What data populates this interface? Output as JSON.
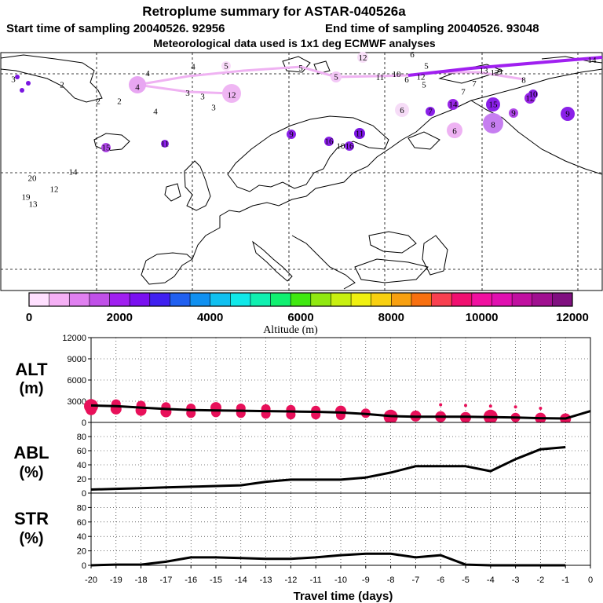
{
  "header": {
    "title": "Retroplume summary for ASTAR-040526a",
    "line2_start": "Start time of sampling 20040526. 92956",
    "line2_end": "End time of sampling 20040526. 93048",
    "line3": "Meteorological data used is 1x1 deg ECMWF analyses"
  },
  "colorbar": {
    "label": "Altitude (m)",
    "ticks": [
      "0",
      "2000",
      "4000",
      "6000",
      "8000",
      "10000",
      "12000"
    ],
    "colors": [
      "#ffe0ff",
      "#f5b0f5",
      "#e080f0",
      "#c050e8",
      "#a020f0",
      "#7a10f0",
      "#4020f0",
      "#2060f0",
      "#1090f0",
      "#10c0f0",
      "#10e8e8",
      "#10f0b0",
      "#10f070",
      "#40e810",
      "#90e810",
      "#c8f010",
      "#f0f010",
      "#f8d010",
      "#f8a010",
      "#f87010",
      "#f84050",
      "#f01070",
      "#f010a0",
      "#e010b0",
      "#c010a0",
      "#a01090",
      "#801080"
    ]
  },
  "map": {
    "plume_labels": [
      {
        "t": "4",
        "big": true
      },
      {
        "t": "4"
      },
      {
        "t": "4"
      },
      {
        "t": "5"
      },
      {
        "t": "5"
      },
      {
        "t": "5"
      },
      {
        "t": "12"
      },
      {
        "t": "6"
      },
      {
        "t": "5"
      },
      {
        "t": "11"
      },
      {
        "t": "10"
      },
      {
        "t": "6"
      },
      {
        "t": "12"
      },
      {
        "t": "13"
      },
      {
        "t": "5"
      },
      {
        "t": "12"
      },
      {
        "t": "9"
      },
      {
        "t": "7"
      },
      {
        "t": "7"
      },
      {
        "t": "8"
      },
      {
        "t": "14"
      },
      {
        "t": "3"
      },
      {
        "t": "3"
      },
      {
        "t": "12"
      },
      {
        "t": "3"
      },
      {
        "t": "3"
      },
      {
        "t": "2"
      },
      {
        "t": "2"
      },
      {
        "t": "2"
      },
      {
        "t": "4"
      },
      {
        "t": "15"
      },
      {
        "t": "11"
      },
      {
        "t": "6"
      },
      {
        "t": "6"
      },
      {
        "t": "14"
      },
      {
        "t": "15"
      },
      {
        "t": "12"
      },
      {
        "t": "11"
      },
      {
        "t": "9"
      },
      {
        "t": "7"
      },
      {
        "t": "8",
        "big": true
      },
      {
        "t": "16"
      },
      {
        "t": "16"
      },
      {
        "t": "10"
      },
      {
        "t": "9"
      },
      {
        "t": "9"
      },
      {
        "t": "10"
      },
      {
        "t": "14"
      },
      {
        "t": "20"
      },
      {
        "t": "12"
      },
      {
        "t": "19"
      },
      {
        "t": "13"
      }
    ]
  },
  "panels": {
    "alt_label": [
      "ALT",
      "(m)"
    ],
    "abl_label": [
      "ABL",
      "(%)"
    ],
    "str_label": [
      "STR",
      "(%)"
    ],
    "xlabel": "Travel time (days)"
  },
  "chart_data": [
    {
      "type": "line",
      "name": "ALT",
      "ylabel": "ALT (m)",
      "ylim": [
        0,
        12000
      ],
      "yticks": [
        0,
        3000,
        6000,
        9000,
        12000
      ],
      "x": [
        -20,
        -19,
        -18,
        -17,
        -16,
        -15,
        -14,
        -13,
        -12,
        -11,
        -10,
        -9,
        -8,
        -7,
        -6,
        -5,
        -4,
        -3,
        -2,
        -1,
        0
      ],
      "xticks": [
        -20,
        -19,
        -18,
        -17,
        -16,
        -15,
        -14,
        -13,
        -12,
        -11,
        -10,
        -9,
        -8,
        -7,
        -6,
        -5,
        -4,
        -3,
        -2,
        -1,
        0
      ],
      "xtick_labels": [
        "-20",
        "-19",
        "-18",
        "-17",
        "-16",
        "-15",
        "-14",
        "-13",
        "-12",
        "-11",
        "-10",
        "-9",
        "-8",
        "-7",
        "-6",
        "-5",
        "-4",
        "-3",
        "-2",
        "-1",
        "0"
      ],
      "values": [
        2400,
        2300,
        2100,
        1900,
        1750,
        1700,
        1650,
        1600,
        1550,
        1500,
        1400,
        1200,
        900,
        800,
        800,
        800,
        750,
        700,
        600,
        550,
        1600
      ],
      "clusters": [
        {
          "x": -20,
          "y": 2300,
          "s": 9
        },
        {
          "x": -20,
          "y": 1800,
          "s": 7
        },
        {
          "x": -19,
          "y": 2600,
          "s": 6
        },
        {
          "x": -19,
          "y": 1900,
          "s": 7
        },
        {
          "x": -18,
          "y": 2400,
          "s": 6
        },
        {
          "x": -18,
          "y": 1700,
          "s": 7
        },
        {
          "x": -17,
          "y": 2200,
          "s": 6
        },
        {
          "x": -17,
          "y": 1500,
          "s": 7
        },
        {
          "x": -16,
          "y": 2000,
          "s": 6
        },
        {
          "x": -16,
          "y": 1300,
          "s": 6
        },
        {
          "x": -15,
          "y": 2100,
          "s": 7
        },
        {
          "x": -15,
          "y": 1400,
          "s": 6
        },
        {
          "x": -14,
          "y": 2000,
          "s": 6
        },
        {
          "x": -14,
          "y": 1300,
          "s": 6
        },
        {
          "x": -13,
          "y": 1900,
          "s": 6
        },
        {
          "x": -13,
          "y": 1200,
          "s": 6
        },
        {
          "x": -12,
          "y": 1800,
          "s": 6
        },
        {
          "x": -12,
          "y": 1100,
          "s": 6
        },
        {
          "x": -11,
          "y": 1700,
          "s": 6
        },
        {
          "x": -11,
          "y": 1100,
          "s": 6
        },
        {
          "x": -10,
          "y": 1600,
          "s": 7
        },
        {
          "x": -10,
          "y": 1000,
          "s": 6
        },
        {
          "x": -9,
          "y": 1300,
          "s": 6
        },
        {
          "x": -8,
          "y": 800,
          "s": 9
        },
        {
          "x": -7,
          "y": 900,
          "s": 7
        },
        {
          "x": -6,
          "y": 800,
          "s": 7
        },
        {
          "x": -5,
          "y": 700,
          "s": 7
        },
        {
          "x": -4,
          "y": 800,
          "s": 9
        },
        {
          "x": -3,
          "y": 700,
          "s": 6
        },
        {
          "x": -2,
          "y": 600,
          "s": 7
        },
        {
          "x": -1,
          "y": 500,
          "s": 7
        },
        {
          "x": -6,
          "y": 2500,
          "s": 2
        },
        {
          "x": -4,
          "y": 2300,
          "s": 2
        },
        {
          "x": -3,
          "y": 2200,
          "s": 2
        },
        {
          "x": -2,
          "y": 2000,
          "s": 2
        },
        {
          "x": -5,
          "y": 2400,
          "s": 2
        }
      ],
      "cluster_color": "#e8105a"
    },
    {
      "type": "line",
      "name": "ABL",
      "ylabel": "ABL (%)",
      "ylim": [
        0,
        100
      ],
      "yticks": [
        0,
        20,
        40,
        60,
        80
      ],
      "x": [
        -20,
        -19,
        -18,
        -17,
        -16,
        -15,
        -14,
        -13,
        -12,
        -11,
        -10,
        -9,
        -8,
        -7,
        -6,
        -5,
        -4,
        -3,
        -2,
        -1
      ],
      "values": [
        5,
        6,
        7,
        8,
        9,
        10,
        11,
        16,
        19,
        19,
        19,
        22,
        29,
        38,
        38,
        38,
        31,
        48,
        62,
        65
      ]
    },
    {
      "type": "line",
      "name": "STR",
      "ylabel": "STR (%)",
      "ylim": [
        0,
        100
      ],
      "yticks": [
        0,
        20,
        40,
        60,
        80
      ],
      "x": [
        -20,
        -19,
        -18,
        -17,
        -16,
        -15,
        -14,
        -13,
        -12,
        -11,
        -10,
        -9,
        -8,
        -7,
        -6,
        -5,
        -4,
        -3,
        -2,
        -1
      ],
      "values": [
        0,
        1,
        1,
        5,
        11,
        11,
        10,
        9,
        9,
        11,
        14,
        16,
        16,
        11,
        14,
        1,
        0,
        0,
        0,
        0
      ]
    }
  ]
}
